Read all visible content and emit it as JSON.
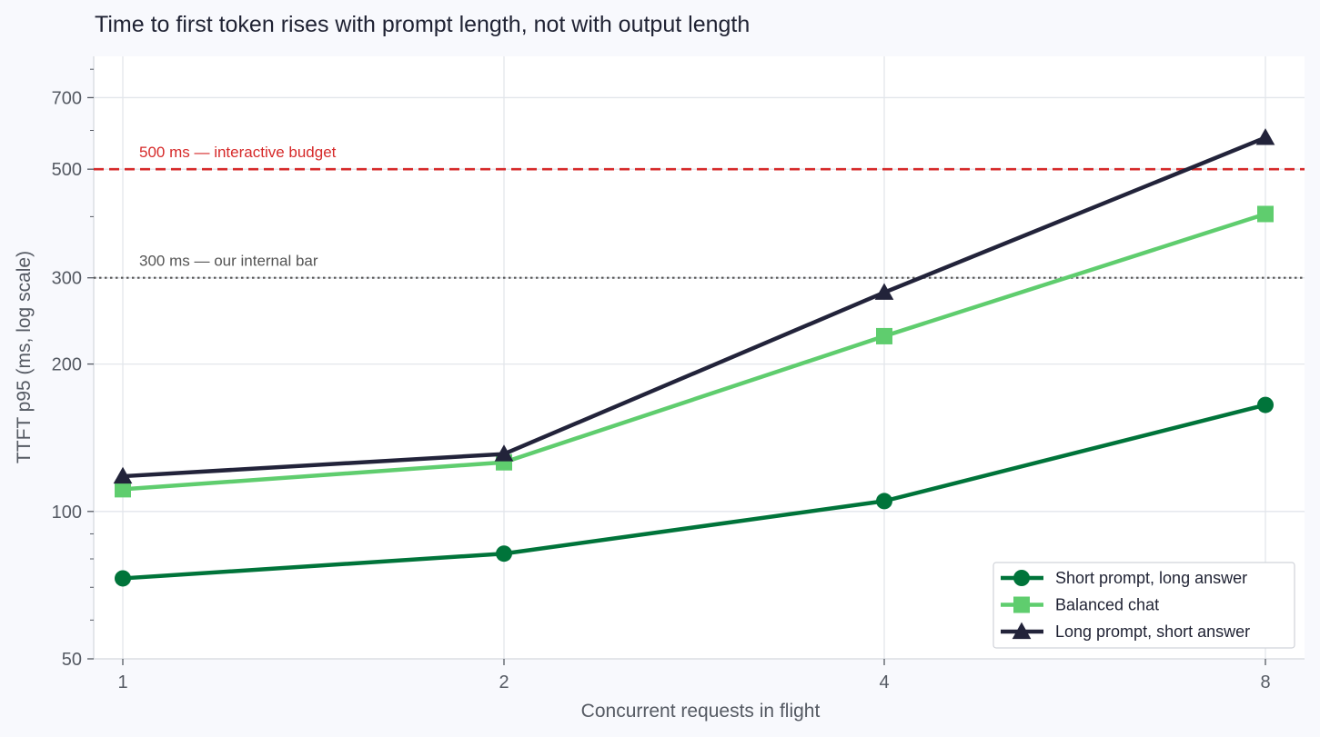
{
  "chart_data": {
    "type": "line",
    "title": "Time to first token rises with prompt length, not with output length",
    "xlabel": "Concurrent requests in flight",
    "ylabel": "TTFT p95 (ms, log scale)",
    "x": [
      1,
      2,
      4,
      8
    ],
    "x_tick_labels": [
      "1",
      "2",
      "4",
      "8"
    ],
    "x_scale": "log2",
    "y_scale": "log",
    "ylim": [
      50,
      850
    ],
    "y_ticks": [
      50,
      100,
      200,
      300,
      500,
      700
    ],
    "y_tick_labels": [
      "50",
      "100",
      "200",
      "300",
      "500",
      "700"
    ],
    "y_minor_ticks": [
      60,
      70,
      80,
      90,
      400,
      600,
      800
    ],
    "grid": true,
    "legend_position": "bottom-right",
    "series": [
      {
        "name": "Short prompt, long answer",
        "values": [
          73,
          82,
          105,
          165
        ],
        "color": "#00743a",
        "marker": "circle"
      },
      {
        "name": "Balanced chat",
        "values": [
          111,
          126,
          228,
          405
        ],
        "color": "#5fcd6e",
        "marker": "square"
      },
      {
        "name": "Long prompt, short answer",
        "values": [
          118,
          131,
          280,
          580
        ],
        "color": "#22233a",
        "marker": "triangle"
      }
    ],
    "reference_lines": [
      {
        "y": 500,
        "label": "500 ms — interactive budget",
        "color": "#d62a2a",
        "style": "dashed"
      },
      {
        "y": 300,
        "label": "300 ms — our internal bar",
        "color": "#555555",
        "style": "dotted"
      }
    ]
  }
}
